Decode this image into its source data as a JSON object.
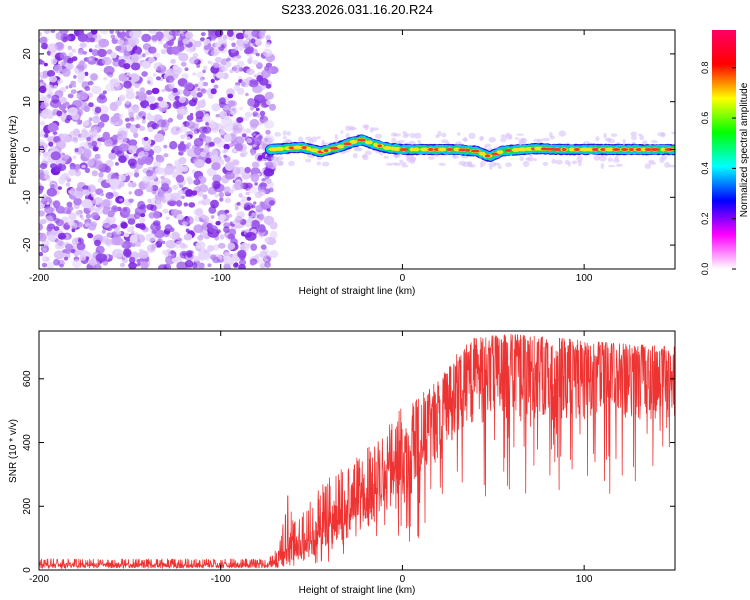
{
  "title": "S233.2026.031.16.20.R24",
  "chart_data": [
    {
      "type": "heatmap",
      "title": "S233.2026.031.16.20.R24",
      "xlabel": "Height of straight line (km)",
      "ylabel": "Frequency (Hz)",
      "xlim": [
        -200,
        150
      ],
      "ylim": [
        -25,
        25
      ],
      "x_ticks": [
        -200,
        -100,
        0,
        100
      ],
      "x_tick_labels": [
        "-200",
        "-100",
        "0",
        "100"
      ],
      "y_ticks": [
        -20,
        -10,
        0,
        10,
        20
      ],
      "y_tick_labels": [
        "-20",
        "-10",
        "0",
        "10",
        "20"
      ],
      "noise_region_x": [
        -200,
        -73
      ],
      "signal_region_x": [
        -73,
        150
      ],
      "signal_frequency_trace": {
        "x": [
          -73,
          -65,
          -55,
          -45,
          -35,
          -28,
          -22,
          -15,
          -8,
          0,
          10,
          20,
          30,
          40,
          48,
          55,
          65,
          75,
          85,
          100,
          115,
          130,
          150
        ],
        "y": [
          0,
          0.2,
          0.5,
          -0.5,
          0.5,
          1.5,
          2,
          1,
          0.3,
          0,
          0,
          0,
          0,
          -0.3,
          -1.5,
          -0.3,
          0,
          0.2,
          0,
          0,
          0,
          0,
          0
        ]
      },
      "colorbar": {
        "label": "Normalized spectral amplitude",
        "range": [
          0,
          0.95
        ],
        "ticks": [
          0.0,
          0.2,
          0.4,
          0.6,
          0.8
        ],
        "tick_labels": [
          "0.0",
          "0.2",
          "0.4",
          "0.6",
          "0.8"
        ],
        "colormap": [
          "#ffffff",
          "#ff00ff",
          "#0000ff",
          "#00ffff",
          "#00ff00",
          "#ffff00",
          "#ff0000",
          "#ff0066"
        ]
      }
    },
    {
      "type": "line",
      "xlabel": "Height of straight line (km)",
      "ylabel": "SNR (10 * v/v)",
      "xlim": [
        -200,
        150
      ],
      "ylim": [
        0,
        750
      ],
      "x_ticks": [
        -200,
        -100,
        0,
        100
      ],
      "x_tick_labels": [
        "-200",
        "-100",
        "0",
        "100"
      ],
      "y_ticks": [
        0,
        200,
        400,
        600
      ],
      "y_tick_labels": [
        "0",
        "200",
        "400",
        "600"
      ],
      "line_color": "#ee3333",
      "series": [
        {
          "name": "SNR",
          "x": [
            -200,
            -150,
            -100,
            -75,
            -68,
            -63,
            -60,
            -50,
            -40,
            -30,
            -20,
            -10,
            0,
            10,
            20,
            30,
            40,
            60,
            80,
            100,
            120,
            150
          ],
          "upper": [
            35,
            35,
            35,
            35,
            70,
            260,
            150,
            220,
            300,
            340,
            380,
            430,
            520,
            550,
            600,
            680,
            730,
            740,
            730,
            720,
            710,
            700
          ],
          "median": [
            15,
            15,
            15,
            15,
            25,
            90,
            60,
            90,
            140,
            180,
            220,
            270,
            330,
            400,
            470,
            540,
            600,
            610,
            610,
            600,
            600,
            600
          ],
          "lower": [
            5,
            5,
            5,
            5,
            5,
            10,
            10,
            10,
            20,
            40,
            50,
            80,
            60,
            100,
            150,
            200,
            220,
            230,
            240,
            240,
            240,
            240
          ]
        }
      ]
    }
  ]
}
